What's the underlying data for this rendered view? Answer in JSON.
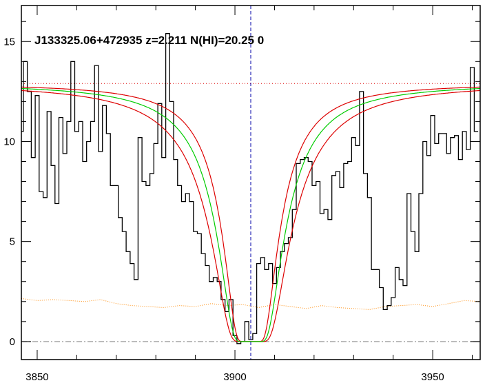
{
  "chart_data": {
    "type": "line",
    "title": "J133325.06+472935 z=2.211 N(HI)=20.25 0",
    "xlabel": "",
    "ylabel": "",
    "xlim": [
      3846,
      3962
    ],
    "ylim": [
      -0.9,
      16.8
    ],
    "x_ticks": [
      3850,
      3900,
      3950
    ],
    "y_ticks": [
      0,
      5,
      10,
      15
    ],
    "grid": false,
    "colors": {
      "spectrum": "#000000",
      "model": "#00cc00",
      "model_bounds": "#dd0000",
      "continuum": "#dd0000",
      "error": "#ff8800",
      "center_line": "#0000aa",
      "zero_line": "#888888"
    },
    "continuum_level": 12.9,
    "absorber_center": 3904,
    "zero_level": 0,
    "series": [
      {
        "style": "step",
        "x": [
          3846.0,
          3847.0,
          3848.0,
          3849.0,
          3850.0,
          3851.0,
          3852.0,
          3853.0,
          3854.0,
          3855.0,
          3856.0,
          3857.0,
          3858.0,
          3859.0,
          3860.0,
          3861.0,
          3862.0,
          3863.0,
          3864.0,
          3865.0,
          3866.0,
          3867.0,
          3868.0,
          3869.0,
          3870.0,
          3871.0,
          3872.0,
          3873.0,
          3874.0,
          3875.0,
          3876.0,
          3877.0,
          3878.0,
          3879.0,
          3880.0,
          3881.0,
          3882.0,
          3883.0,
          3884.0,
          3885.0,
          3886.0,
          3887.0,
          3888.0,
          3889.0,
          3890.0,
          3891.0,
          3892.0,
          3893.0,
          3894.0,
          3895.0,
          3896.0,
          3897.0,
          3898.0,
          3899.0,
          3900.0,
          3901.0,
          3902.0,
          3903.0,
          3904.0,
          3905.0,
          3906.0,
          3907.0,
          3908.0,
          3909.0,
          3910.0,
          3911.0,
          3912.0,
          3913.0,
          3914.0,
          3915.0,
          3916.0,
          3917.0,
          3918.0,
          3919.0,
          3920.0,
          3921.0,
          3922.0,
          3923.0,
          3924.0,
          3925.0,
          3926.0,
          3927.0,
          3928.0,
          3929.0,
          3930.0,
          3931.0,
          3932.0,
          3933.0,
          3934.0,
          3935.0,
          3936.0,
          3937.0,
          3938.0,
          3939.0,
          3940.0,
          3941.0,
          3942.0,
          3943.0,
          3944.0,
          3945.0,
          3946.0,
          3947.0,
          3948.0,
          3949.0,
          3950.0,
          3951.0,
          3952.0,
          3953.0,
          3954.0,
          3955.0,
          3956.0,
          3957.0,
          3958.0,
          3959.0,
          3960.0,
          3961.0
        ],
        "values": [
          10.5,
          14.0,
          12.5,
          9.2,
          12.3,
          7.5,
          7.2,
          11.5,
          8.8,
          6.9,
          11.2,
          9.4,
          11.0,
          14.0,
          10.5,
          11.0,
          9.0,
          10.0,
          11.0,
          13.8,
          9.5,
          11.8,
          10.4,
          7.8,
          7.8,
          6.2,
          5.5,
          4.5,
          3.9,
          3.1,
          10.2,
          8.0,
          7.8,
          8.4,
          9.9,
          11.9,
          9.2,
          15.4,
          12.0,
          9.1,
          7.8,
          7.0,
          7.4,
          7.0,
          5.5,
          5.4,
          4.4,
          3.8,
          3.0,
          3.2,
          3.0,
          2.1,
          1.5,
          2.1,
          0.3,
          -0.1,
          0.0,
          1.0,
          0.1,
          0.4,
          3.9,
          4.2,
          3.6,
          3.9,
          2.9,
          3.7,
          4.5,
          4.9,
          5.2,
          6.6,
          8.9,
          9.1,
          9.2,
          9.0,
          7.8,
          8.0,
          6.4,
          6.6,
          6.1,
          8.3,
          8.5,
          7.7,
          8.9,
          9.0,
          10.2,
          9.8,
          12.5,
          8.4,
          7.2,
          3.6,
          3.6,
          2.7,
          1.6,
          1.8,
          2.2,
          3.7,
          3.1,
          2.8,
          7.4,
          5.5,
          4.5,
          7.4,
          10.0,
          9.3,
          11.3,
          9.9,
          10.4,
          10.4,
          9.4,
          10.2,
          10.3,
          9.1,
          10.5,
          9.6,
          13.7,
          10.5
        ]
      },
      {
        "style": "dotted",
        "x": [
          3846,
          3850,
          3854,
          3858,
          3862,
          3866,
          3870,
          3874,
          3878,
          3882,
          3886,
          3890,
          3894,
          3898,
          3902,
          3906,
          3910,
          3914,
          3918,
          3922,
          3926,
          3930,
          3934,
          3938,
          3942,
          3946,
          3950,
          3954,
          3958,
          3962
        ],
        "values": [
          2.15,
          2.05,
          2.1,
          2.05,
          2.0,
          2.1,
          1.9,
          1.8,
          1.75,
          1.7,
          1.8,
          1.75,
          1.9,
          1.8,
          1.85,
          1.7,
          1.85,
          1.75,
          1.65,
          1.8,
          1.7,
          1.65,
          1.6,
          1.75,
          1.8,
          1.85,
          1.75,
          1.9,
          2.05,
          2.0
        ]
      }
    ]
  }
}
